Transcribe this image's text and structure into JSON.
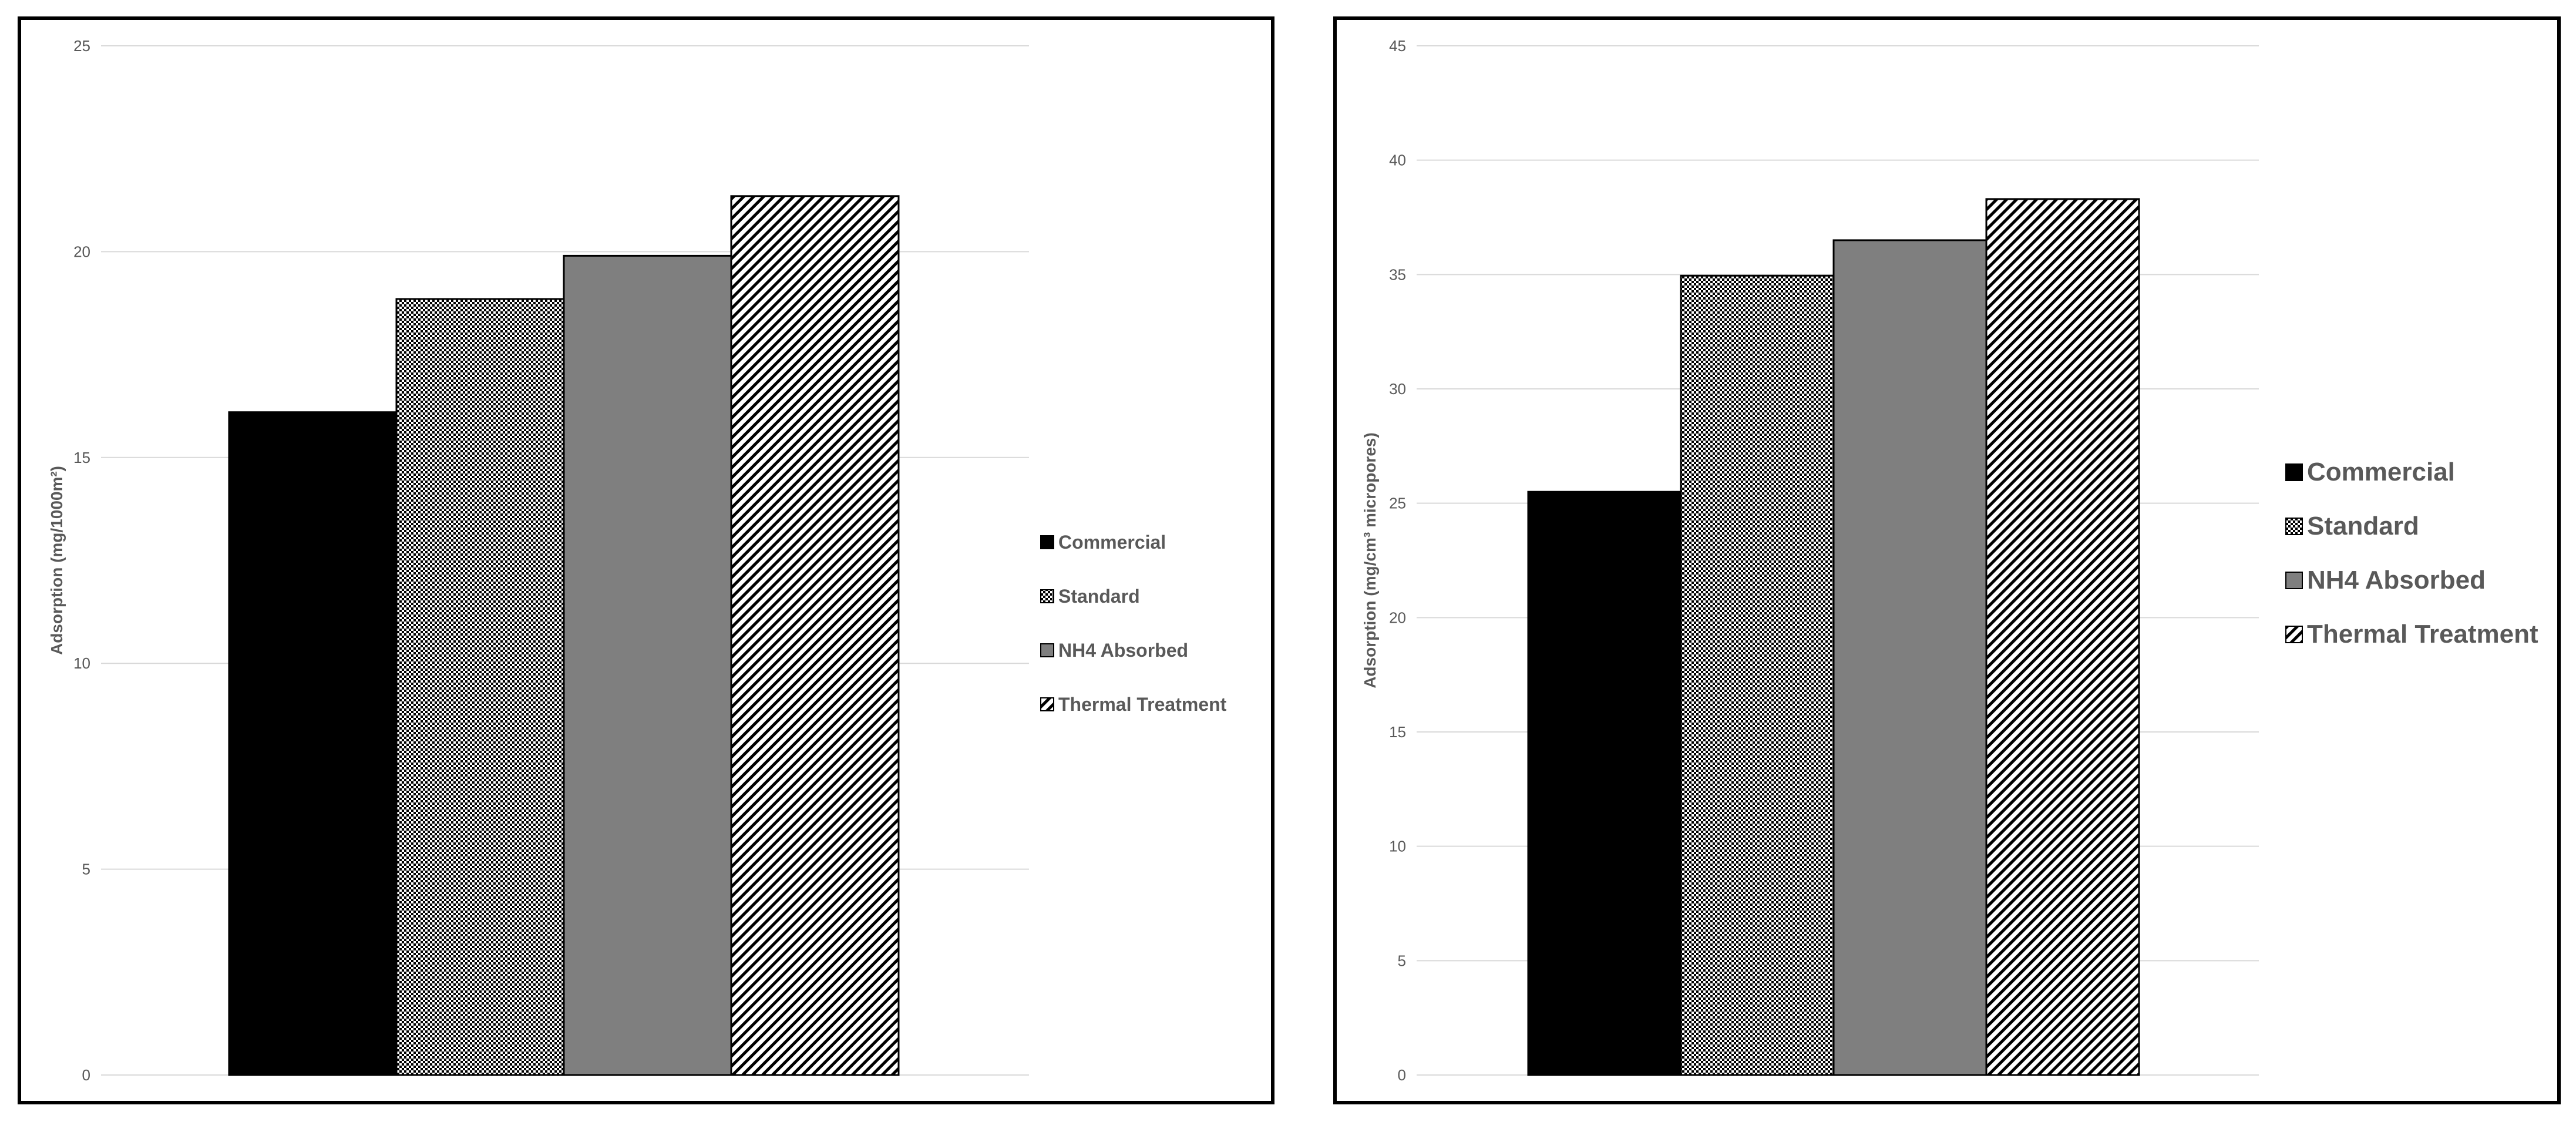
{
  "chart_data": [
    {
      "type": "bar",
      "categories": [
        "Commercial",
        "Standard",
        "NH4 Absorbed",
        "Thermal Treatment"
      ],
      "values": [
        16.1,
        18.85,
        19.9,
        21.35
      ],
      "ylabel": "Adsorption (mg/1000m²)",
      "ylim": [
        0,
        25
      ],
      "yticks": [
        0,
        5,
        10,
        15,
        20,
        25
      ],
      "grid": true,
      "legend_position": "right",
      "fills": [
        "solid black",
        "checkerboard",
        "solid gray",
        "diagonal hatch"
      ],
      "colors": [
        "#000000",
        "#000000",
        "#7f7f7f",
        "#000000"
      ]
    },
    {
      "type": "bar",
      "categories": [
        "Commercial",
        "Standard",
        "NH4 Absorbed",
        "Thermal Treatment"
      ],
      "values": [
        25.5,
        34.95,
        36.5,
        38.3
      ],
      "ylabel": "Adsorption (mg/cm³ micropores)",
      "ylim": [
        0,
        45
      ],
      "yticks": [
        0,
        5,
        10,
        15,
        20,
        25,
        30,
        35,
        40,
        45
      ],
      "grid": true,
      "legend_position": "right",
      "fills": [
        "solid black",
        "checkerboard",
        "solid gray",
        "diagonal hatch"
      ],
      "colors": [
        "#000000",
        "#000000",
        "#7f7f7f",
        "#000000"
      ]
    }
  ]
}
